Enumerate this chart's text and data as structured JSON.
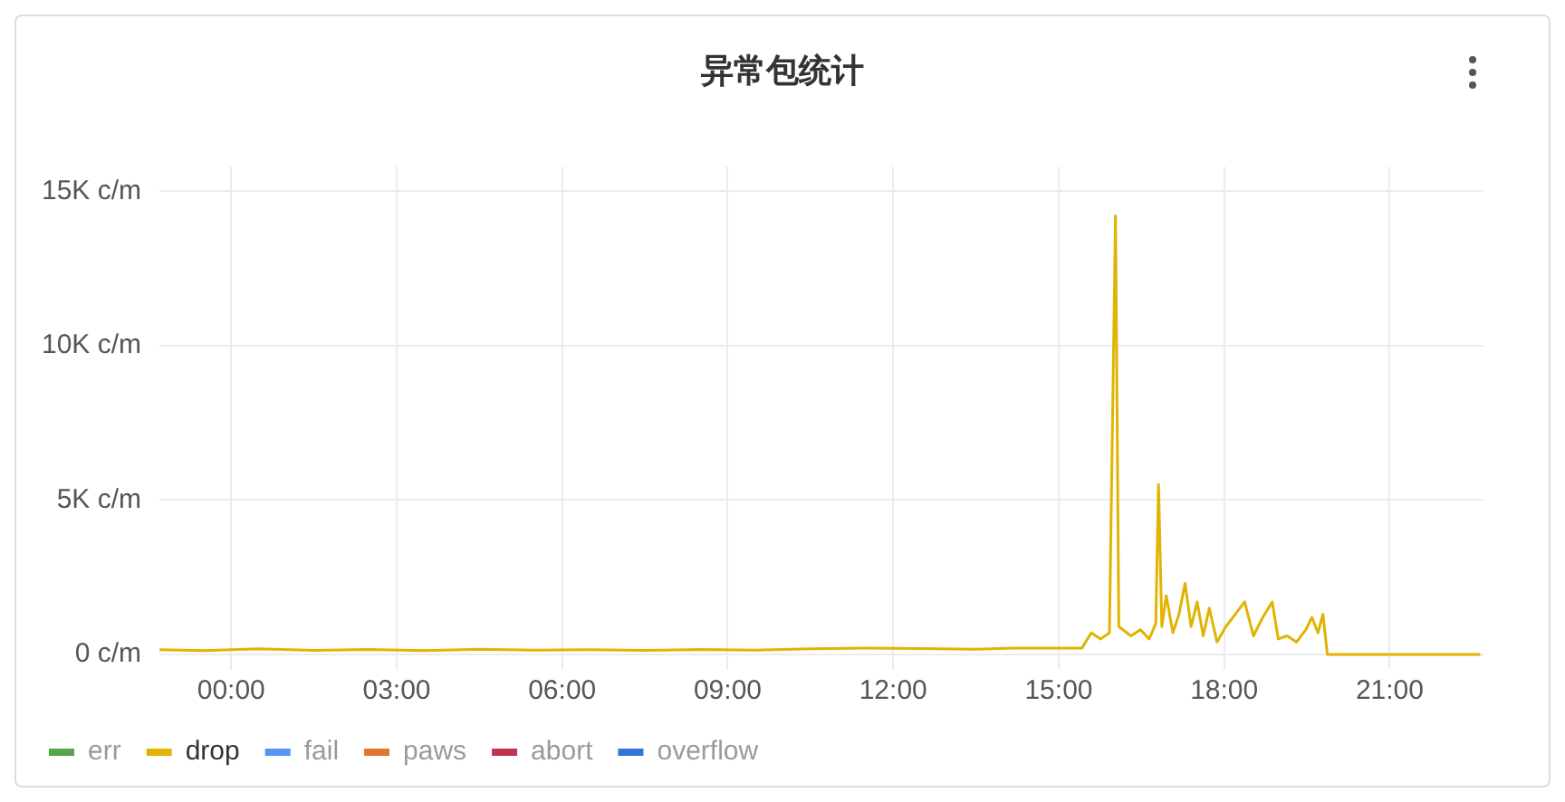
{
  "chart_data": {
    "type": "line",
    "title": "异常包统计",
    "xlim": [
      -1.3,
      22.7
    ],
    "xticks": [
      {
        "value": 0,
        "label": "00:00"
      },
      {
        "value": 3,
        "label": "03:00"
      },
      {
        "value": 6,
        "label": "06:00"
      },
      {
        "value": 9,
        "label": "09:00"
      },
      {
        "value": 12,
        "label": "12:00"
      },
      {
        "value": 15,
        "label": "15:00"
      },
      {
        "value": 18,
        "label": "18:00"
      },
      {
        "value": 21,
        "label": "21:00"
      }
    ],
    "ylim": [
      -500,
      15800
    ],
    "yticks": [
      {
        "value": 0,
        "label": "0 c/m"
      },
      {
        "value": 5000,
        "label": "5K c/m"
      },
      {
        "value": 10000,
        "label": "10K c/m"
      },
      {
        "value": 15000,
        "label": "15K c/m"
      }
    ],
    "grid": true,
    "legend": "bottom",
    "marker": "none",
    "line_style": "solid",
    "x": [
      -1.3,
      -0.5,
      0.5,
      1.5,
      2.5,
      3.5,
      4.5,
      5.5,
      6.5,
      7.5,
      8.5,
      9.5,
      10.5,
      11.5,
      12.5,
      13.5,
      14.2,
      15.42,
      15.59,
      15.76,
      15.92,
      16.03,
      16.09,
      16.31,
      16.48,
      16.64,
      16.76,
      16.81,
      16.87,
      16.95,
      17.07,
      17.18,
      17.29,
      17.4,
      17.51,
      17.62,
      17.73,
      17.87,
      18.03,
      18.2,
      18.37,
      18.53,
      18.7,
      18.87,
      18.98,
      19.14,
      19.31,
      19.48,
      19.59,
      19.7,
      19.79,
      19.87,
      22.64
    ],
    "series": [
      {
        "name": "err",
        "color": "#56a64b",
        "values": [
          null,
          null,
          null,
          null,
          null,
          null,
          null,
          null,
          null,
          null,
          null,
          null,
          null,
          null,
          null,
          null,
          null,
          null,
          null,
          null,
          null,
          null,
          null,
          null,
          null,
          null,
          null,
          null,
          null,
          null,
          null,
          null,
          null,
          null,
          null,
          null,
          null,
          null,
          null,
          null,
          null,
          null,
          null,
          null,
          null,
          null,
          null,
          null,
          null,
          null,
          null,
          null,
          null
        ]
      },
      {
        "name": "drop",
        "color": "#e0b400",
        "values": [
          150,
          120,
          180,
          130,
          160,
          120,
          170,
          140,
          150,
          130,
          160,
          140,
          180,
          200,
          190,
          170,
          200,
          200,
          700,
          500,
          700,
          14200,
          900,
          600,
          800,
          500,
          1000,
          5500,
          900,
          1900,
          700,
          1300,
          2300,
          900,
          1700,
          600,
          1500,
          400,
          900,
          1300,
          1700,
          600,
          1200,
          1700,
          500,
          600,
          400,
          800,
          1200,
          700,
          1300,
          0,
          0
        ]
      },
      {
        "name": "fail",
        "color": "#5794f2",
        "values": [
          null,
          null,
          null,
          null,
          null,
          null,
          null,
          null,
          null,
          null,
          null,
          null,
          null,
          null,
          null,
          null,
          null,
          null,
          null,
          null,
          null,
          null,
          null,
          null,
          null,
          null,
          null,
          null,
          null,
          null,
          null,
          null,
          null,
          null,
          null,
          null,
          null,
          null,
          null,
          null,
          null,
          null,
          null,
          null,
          null,
          null,
          null,
          null,
          null,
          null,
          null,
          null,
          null
        ]
      },
      {
        "name": "paws",
        "color": "#e0752d",
        "values": [
          null,
          null,
          null,
          null,
          null,
          null,
          null,
          null,
          null,
          null,
          null,
          null,
          null,
          null,
          null,
          null,
          null,
          null,
          null,
          null,
          null,
          null,
          null,
          null,
          null,
          null,
          null,
          null,
          null,
          null,
          null,
          null,
          null,
          null,
          null,
          null,
          null,
          null,
          null,
          null,
          null,
          null,
          null,
          null,
          null,
          null,
          null,
          null,
          null,
          null,
          null,
          null,
          null
        ]
      },
      {
        "name": "abort",
        "color": "#c4314b",
        "values": [
          null,
          null,
          null,
          null,
          null,
          null,
          null,
          null,
          null,
          null,
          null,
          null,
          null,
          null,
          null,
          null,
          null,
          null,
          null,
          null,
          null,
          null,
          null,
          null,
          null,
          null,
          null,
          null,
          null,
          null,
          null,
          null,
          null,
          null,
          null,
          null,
          null,
          null,
          null,
          null,
          null,
          null,
          null,
          null,
          null,
          null,
          null,
          null,
          null,
          null,
          null,
          null,
          null
        ]
      },
      {
        "name": "overflow",
        "color": "#3274d9",
        "values": [
          null,
          null,
          null,
          null,
          null,
          null,
          null,
          null,
          null,
          null,
          null,
          null,
          null,
          null,
          null,
          null,
          null,
          null,
          null,
          null,
          null,
          null,
          null,
          null,
          null,
          null,
          null,
          null,
          null,
          null,
          null,
          null,
          null,
          null,
          null,
          null,
          null,
          null,
          null,
          null,
          null,
          null,
          null,
          null,
          null,
          null,
          null,
          null,
          null,
          null,
          null,
          null,
          null
        ]
      }
    ]
  }
}
